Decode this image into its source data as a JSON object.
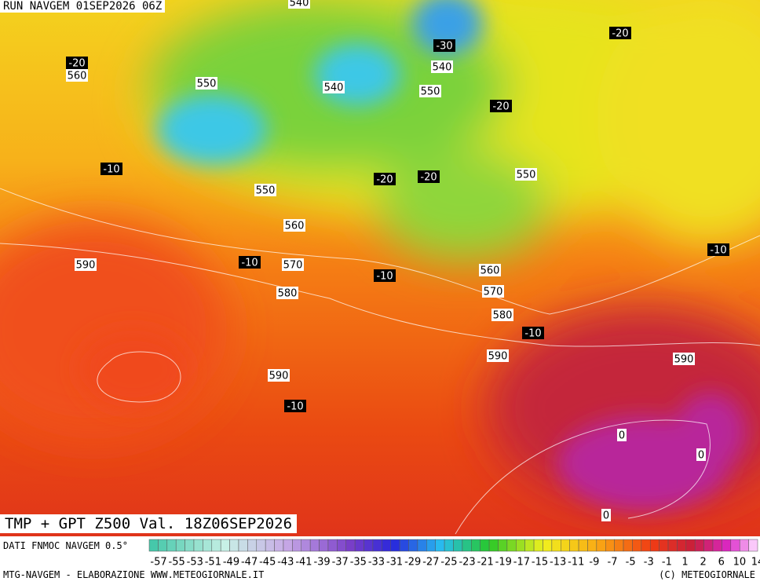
{
  "header": {
    "run": "RUN NAVGEM 01SEP2026 06Z",
    "title": "TMP + GPT Z500 Val. 18Z06SEP2026"
  },
  "map": {
    "labels": [
      "540",
      "-30",
      "-20",
      "-20",
      "560",
      "540",
      "550",
      "540",
      "550",
      "-20",
      "-10",
      "-20",
      "-20",
      "550",
      "550",
      "560",
      "-10",
      "570",
      "590",
      "-10",
      "-10",
      "560",
      "580",
      "570",
      "580",
      "-10",
      "590",
      "590",
      "590",
      "-10",
      "0",
      "0",
      "0"
    ]
  },
  "legend": {
    "source": "DATI FNMOC NAVGEM 0.5°",
    "labels": [
      "-57",
      "-55",
      "-53",
      "-51",
      "-49",
      "-47",
      "-45",
      "-43",
      "-41",
      "-39",
      "-37",
      "-35",
      "-33",
      "-31",
      "-29",
      "-27",
      "-25",
      "-23",
      "-21",
      "-19",
      "-17",
      "-15",
      "-13",
      "-11",
      "-9",
      "-7",
      "-5",
      "-3",
      "-1",
      "1",
      "2",
      "6",
      "10",
      "14"
    ]
  },
  "footer": {
    "left": "MTG-NAVGEM - ELABORAZIONE WWW.METEOGIORNALE.IT",
    "right": "(C) METEOGIORNALE"
  }
}
